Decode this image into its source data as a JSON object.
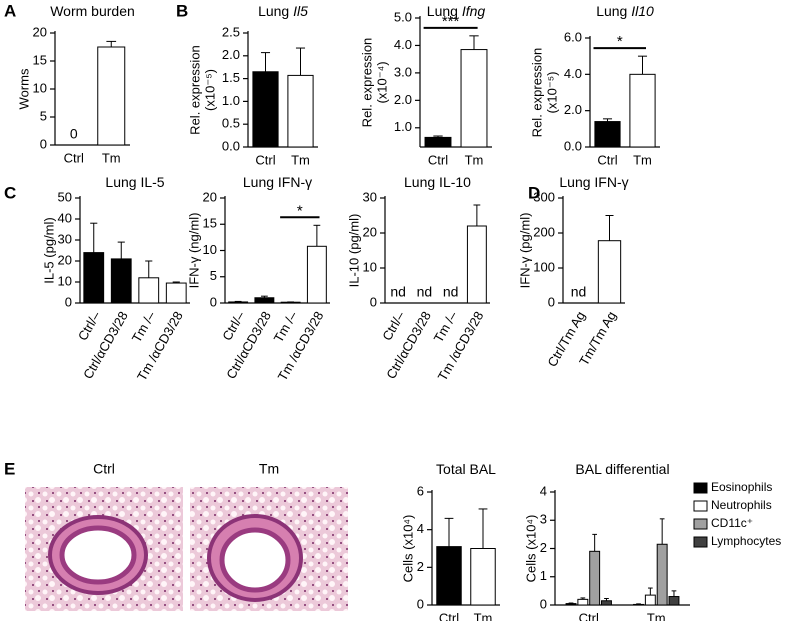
{
  "panel_labels": [
    "A",
    "B",
    "C",
    "D",
    "E"
  ],
  "images": [
    "Ctrl",
    "Tm"
  ],
  "chart_data": [
    {
      "type": "bar",
      "title": "Worm burden",
      "ylabel": "Worms",
      "categories": [
        "Ctrl",
        "Tm"
      ],
      "values": [
        0,
        17.5
      ],
      "errors": [
        null,
        1.0
      ],
      "value_labels": [
        "0",
        null
      ],
      "colors": [
        "#000000",
        "#ffffff"
      ],
      "ylim": [
        0,
        20
      ],
      "yticks": [
        0,
        5,
        10,
        15,
        20
      ]
    },
    {
      "type": "bar",
      "title": "Lung",
      "title_gene": "Il5",
      "ylabel": [
        "Rel. expression",
        "(x10⁻⁵)"
      ],
      "categories": [
        "Ctrl",
        "Tm"
      ],
      "values": [
        1.65,
        1.57
      ],
      "errors": [
        0.42,
        0.6
      ],
      "colors": [
        "#000000",
        "#ffffff"
      ],
      "ylim": [
        0,
        2.5
      ],
      "yticks": [
        {
          "value": 0,
          "label": "0.0"
        },
        0.5,
        {
          "value": 1,
          "label": "1.0"
        },
        1.5,
        {
          "value": 2,
          "label": "2.0"
        },
        2.5
      ]
    },
    {
      "type": "bar",
      "title": "Lung",
      "title_gene": "Ifng",
      "ylabel": [
        "Rel. expression",
        "(x10⁻⁴)"
      ],
      "categories": [
        "Ctrl",
        "Tm"
      ],
      "values": [
        0.65,
        3.85
      ],
      "errors": [
        0.05,
        0.5
      ],
      "colors": [
        "#000000",
        "#ffffff"
      ],
      "ylim": [
        0.3,
        5
      ],
      "yticks": [
        {
          "value": 1,
          "label": "1.0"
        },
        {
          "value": 2,
          "label": "2.0"
        },
        {
          "value": 3,
          "label": "3.0"
        },
        {
          "value": 4,
          "label": "4.0"
        },
        {
          "value": 5,
          "label": "5.0"
        }
      ],
      "annotations": [
        {
          "text": "***",
          "between": [
            0,
            1
          ]
        }
      ]
    },
    {
      "type": "bar",
      "title": "Lung",
      "title_gene": "Il10",
      "ylabel": [
        "Rel. expression",
        "(x10⁻⁵)"
      ],
      "categories": [
        "Ctrl",
        "Tm"
      ],
      "values": [
        1.4,
        4.0
      ],
      "errors": [
        0.15,
        1.0
      ],
      "colors": [
        "#000000",
        "#ffffff"
      ],
      "ylim": [
        0,
        6
      ],
      "yticks": [
        {
          "value": 0,
          "label": "0.0"
        },
        {
          "value": 2,
          "label": "2.0"
        },
        {
          "value": 4,
          "label": "4.0"
        },
        {
          "value": 6,
          "label": "6.0"
        }
      ],
      "annotations": [
        {
          "text": "*",
          "between": [
            0,
            1
          ]
        }
      ]
    },
    {
      "type": "bar",
      "title": "Lung IL-5",
      "ylabel": "IL-5  (pg/ml)",
      "categories": [
        "Ctrl/–",
        "Ctrl/αCD3/28",
        "Tm /–",
        "Tm /αCD3/28"
      ],
      "values": [
        24,
        21,
        12,
        9.5
      ],
      "errors": [
        14,
        8,
        8,
        0.5
      ],
      "colors": [
        "#000000",
        "#000000",
        "#ffffff",
        "#ffffff"
      ],
      "ylim": [
        0,
        50
      ],
      "yticks": [
        0,
        10,
        20,
        30,
        40,
        50
      ]
    },
    {
      "type": "bar",
      "title": "Lung IFN-γ",
      "ylabel": "IFN-γ (ng/ml)",
      "categories": [
        "Ctrl/–",
        "Ctrl/αCD3/28",
        "Tm /–",
        "Tm /αCD3/28"
      ],
      "values": [
        0.2,
        1.0,
        0.15,
        10.8
      ],
      "errors": [
        0.1,
        0.3,
        0.05,
        4.0
      ],
      "colors": [
        "#000000",
        "#000000",
        "#ffffff",
        "#ffffff"
      ],
      "ylim": [
        0,
        20
      ],
      "yticks": [
        0,
        5,
        10,
        15,
        20
      ],
      "annotations": [
        {
          "text": "*",
          "between": [
            2,
            3
          ]
        }
      ]
    },
    {
      "type": "bar",
      "title": "Lung IL-10",
      "ylabel": "IL-10 (pg/ml)",
      "categories": [
        "Ctrl/–",
        "Ctrl/αCD3/28",
        "Tm /–",
        "Tm /αCD3/28"
      ],
      "values": [
        null,
        null,
        null,
        22
      ],
      "value_labels": [
        "nd",
        "nd",
        "nd",
        null
      ],
      "errors": [
        null,
        null,
        null,
        6
      ],
      "colors": [
        "#000000",
        "#000000",
        "#ffffff",
        "#ffffff"
      ],
      "ylim": [
        0,
        30
      ],
      "yticks": [
        0,
        10,
        20,
        30
      ]
    },
    {
      "type": "bar",
      "title": "Lung IFN-γ",
      "ylabel": "IFN-γ (pg/ml)",
      "categories": [
        "Ctrl/Tm Ag",
        "Tm/Tm Ag"
      ],
      "values": [
        null,
        178
      ],
      "value_labels": [
        "nd",
        null
      ],
      "errors": [
        null,
        72
      ],
      "colors": [
        "#000000",
        "#ffffff"
      ],
      "ylim": [
        0,
        300
      ],
      "yticks": [
        0,
        100,
        200,
        300
      ]
    },
    {
      "type": "bar",
      "title": "Total BAL",
      "ylabel": "Cells (x10⁴)",
      "categories": [
        "Ctrl",
        "Tm"
      ],
      "values": [
        3.1,
        3.0
      ],
      "errors": [
        1.5,
        2.1
      ],
      "colors": [
        "#000000",
        "#ffffff"
      ],
      "ylim": [
        0,
        6
      ],
      "yticks": [
        0,
        2,
        4,
        6
      ]
    },
    {
      "type": "grouped_bar",
      "title": "BAL differential",
      "ylabel": "Cells (x10⁴)",
      "categories": [
        "Ctrl",
        "Tm"
      ],
      "legend": "right",
      "series": [
        {
          "name": "Eosinophils",
          "color": "#000000",
          "values": [
            0.05,
            0.02
          ],
          "errors": [
            0.02,
            0.02
          ]
        },
        {
          "name": "Neutrophils",
          "color": "#ffffff",
          "values": [
            0.2,
            0.35
          ],
          "errors": [
            0.05,
            0.25
          ]
        },
        {
          "name": "CD11c⁺",
          "color": "#a0a0a0",
          "values": [
            1.9,
            2.15
          ],
          "errors": [
            0.6,
            0.9
          ]
        },
        {
          "name": "Lymphocytes",
          "color": "#404040",
          "values": [
            0.15,
            0.3
          ],
          "errors": [
            0.08,
            0.2
          ]
        }
      ],
      "ylim": [
        0,
        4
      ],
      "yticks": [
        0,
        1,
        2,
        3,
        4
      ]
    }
  ]
}
